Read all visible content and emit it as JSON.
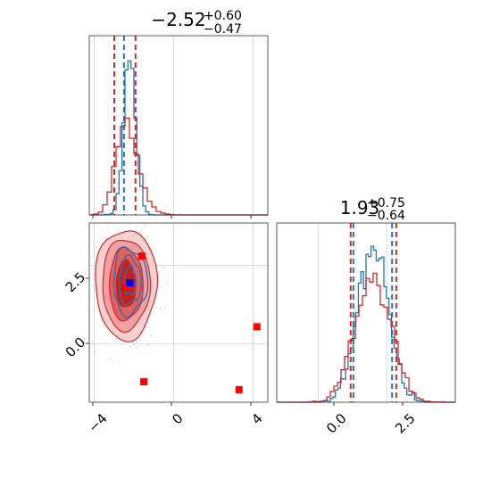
{
  "chart_data": [
    {
      "type": "histogram",
      "panel": "top-left marginal",
      "title": {
        "median": "−2.52",
        "upper": "+0.60",
        "lower": "−0.47"
      },
      "xlim": [
        -4.25,
        4.75
      ],
      "x_ticks": [
        -4,
        0,
        4
      ],
      "x_tick_labels_shown": false,
      "y_tick_labels_shown": false,
      "grid": true,
      "series": [
        {
          "color": "#1f77b4",
          "peak_x": -2.2,
          "spread": 0.3,
          "quantiles_dashed": [
            -2.5
          ]
        },
        {
          "color": "#d62728",
          "peak_x": -2.4,
          "spread": 0.5,
          "quantiles_dashed": [
            -2.99,
            -1.92
          ]
        }
      ]
    },
    {
      "type": "histogram",
      "panel": "bottom-right marginal",
      "title": {
        "median": "1.93",
        "upper": "+0.75",
        "lower": "−0.64"
      },
      "xlim": [
        -1.5,
        5.0
      ],
      "x_ticks": [
        0.0,
        2.5
      ],
      "x_tick_labels": [
        "0.0",
        "2.5"
      ],
      "grid": true,
      "series": [
        {
          "color": "#1f77b4",
          "peak_x": 2.0,
          "spread": 0.55,
          "quantiles_dashed": [
            1.29,
            2.7
          ]
        },
        {
          "color": "#d62728",
          "peak_x": 2.0,
          "spread": 0.65,
          "quantiles_dashed": [
            1.19,
            2.85
          ]
        }
      ]
    },
    {
      "type": "contour-scatter",
      "panel": "bottom-left joint",
      "xlim": [
        -4.25,
        4.75
      ],
      "ylim": [
        -1.85,
        3.85
      ],
      "x_ticks": [
        -4,
        0,
        4
      ],
      "x_tick_labels": [
        "−4",
        "0",
        "4"
      ],
      "y_ticks": [
        0.0,
        2.5
      ],
      "y_tick_labels": [
        "0.0",
        "2.5"
      ],
      "grid": true,
      "red_contour_center": [
        -2.4,
        1.9
      ],
      "blue_contour_center": [
        -2.2,
        2.0
      ],
      "red_squares": [
        {
          "x": -1.6,
          "y": 2.8
        },
        {
          "x": -2.5,
          "y": 1.8
        },
        {
          "x": 4.2,
          "y": 0.55
        },
        {
          "x": -1.5,
          "y": -1.2
        },
        {
          "x": 3.3,
          "y": -1.45
        }
      ],
      "blue_square": {
        "x": -2.2,
        "y": 1.95
      },
      "colors": {
        "red": "#d62728",
        "blue": "#1f77b4",
        "square_red": "#ff0000",
        "square_blue": "#0000ff"
      }
    }
  ]
}
